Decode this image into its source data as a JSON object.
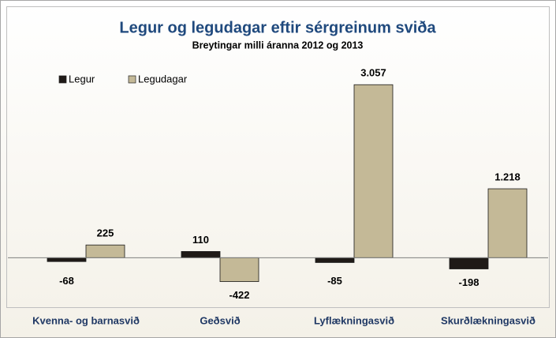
{
  "chart_data": {
    "type": "bar",
    "title": "Legur og legudagar  eftir sérgreinum sviða",
    "subtitle": "Breytingar milli áranna 2012 og 2013",
    "categories": [
      "Kvenna- og barnasvið",
      "Geðsvið",
      "Lyflækningasvið",
      "Skurðlækningasvið"
    ],
    "series": [
      {
        "name": "Legur",
        "color": "#1f1a17",
        "values": [
          -68,
          110,
          -85,
          -198
        ],
        "value_labels": [
          "-68",
          "110",
          "-85",
          "-198"
        ]
      },
      {
        "name": "Legudagar",
        "color": "#c4b997",
        "values": [
          225,
          -422,
          3057,
          1218
        ],
        "value_labels": [
          "225",
          "-422",
          "3.057",
          "1.218"
        ]
      }
    ],
    "ylim": [
      -1000,
      3200
    ],
    "legend": "top-left"
  }
}
